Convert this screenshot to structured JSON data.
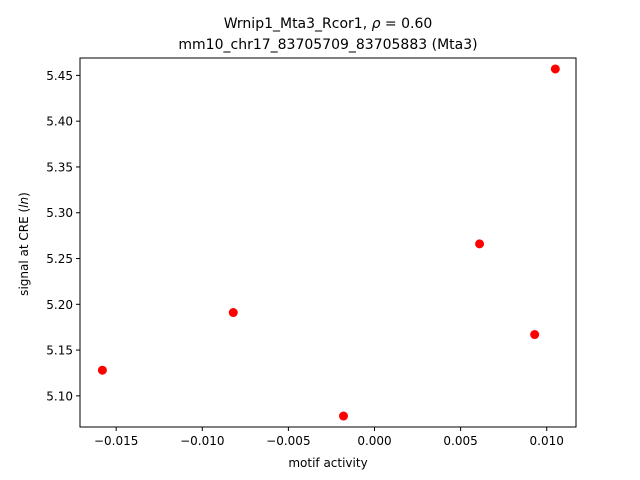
{
  "chart_data": {
    "type": "scatter",
    "title_line1": "Wrnip1_Mta3_Rcor1, ρ = 0.60",
    "title_line2": "mm10_chr17_83705709_83705883 (Mta3)",
    "xlabel": "motif activity",
    "ylabel": "signal at CRE (ln)",
    "xlim": [
      -0.0171,
      0.0117
    ],
    "ylim": [
      5.066,
      5.469
    ],
    "x_ticks": [
      -0.015,
      -0.01,
      -0.005,
      0.0,
      0.005,
      0.01
    ],
    "x_tick_labels": [
      "−0.015",
      "−0.010",
      "−0.005",
      "0.000",
      "0.005",
      "0.010"
    ],
    "y_ticks": [
      5.1,
      5.15,
      5.2,
      5.25,
      5.3,
      5.35,
      5.4,
      5.45
    ],
    "y_tick_labels": [
      "5.10",
      "5.15",
      "5.20",
      "5.25",
      "5.30",
      "5.35",
      "5.40",
      "5.45"
    ],
    "grid": false,
    "marker_color": "#ff0000",
    "points": [
      {
        "x": -0.0158,
        "y": 5.128
      },
      {
        "x": -0.0082,
        "y": 5.191
      },
      {
        "x": -0.0018,
        "y": 5.078
      },
      {
        "x": 0.0061,
        "y": 5.266
      },
      {
        "x": 0.0093,
        "y": 5.167
      },
      {
        "x": 0.0105,
        "y": 5.457
      }
    ]
  }
}
